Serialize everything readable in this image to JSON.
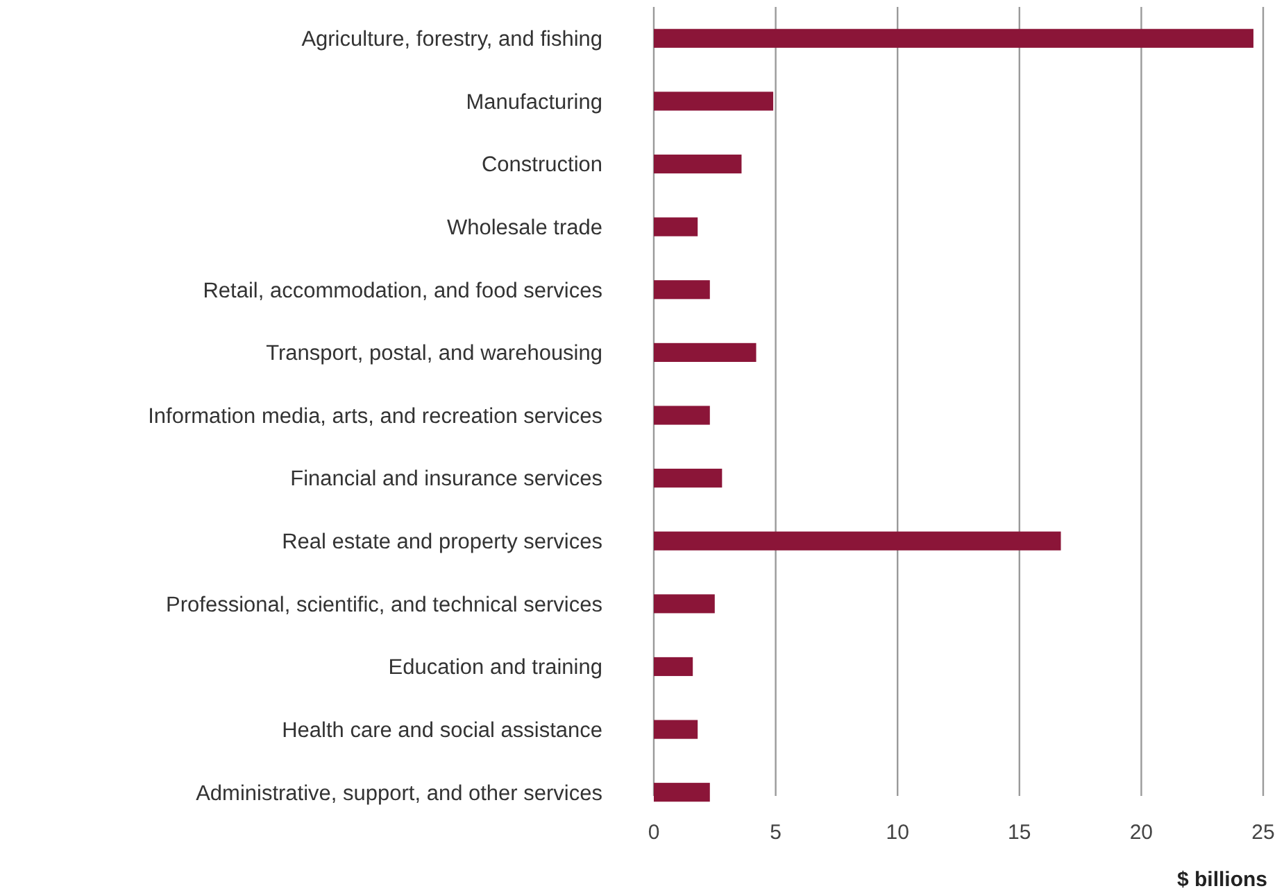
{
  "chart_data": {
    "type": "bar",
    "orientation": "horizontal",
    "xlabel": "$ billions",
    "categories": [
      "Agriculture, forestry, and fishing",
      "Manufacturing",
      "Construction",
      "Wholesale trade",
      "Retail, accommodation, and food services",
      "Transport, postal, and warehousing",
      "Information media, arts, and recreation services",
      "Financial and insurance services",
      "Real estate and property services",
      "Professional, scientific, and technical services",
      "Education and training",
      "Health care and social assistance",
      "Administrative, support, and other services"
    ],
    "values": [
      24.6,
      4.9,
      3.6,
      1.8,
      2.3,
      4.2,
      2.3,
      2.8,
      16.7,
      2.5,
      1.6,
      1.8,
      2.3
    ],
    "color": "#8b1538",
    "xlim": [
      0,
      25
    ],
    "xticks": [
      0,
      5,
      10,
      15,
      20,
      25
    ],
    "grid": "x"
  }
}
